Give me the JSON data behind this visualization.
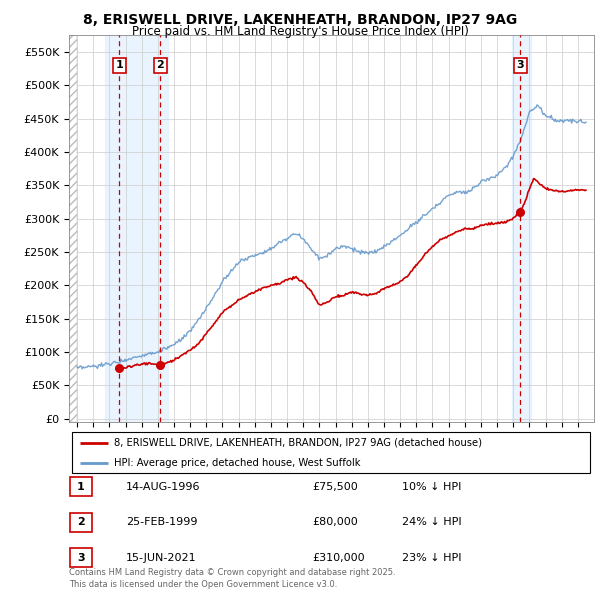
{
  "title_line1": "8, ERISWELL DRIVE, LAKENHEATH, BRANDON, IP27 9AG",
  "title_line2": "Price paid vs. HM Land Registry's House Price Index (HPI)",
  "legend_label_red": "8, ERISWELL DRIVE, LAKENHEATH, BRANDON, IP27 9AG (detached house)",
  "legend_label_blue": "HPI: Average price, detached house, West Suffolk",
  "transactions": [
    {
      "num": 1,
      "date": "14-AUG-1996",
      "year": 1996.62,
      "price": 75500,
      "pct": "10% ↓ HPI"
    },
    {
      "num": 2,
      "date": "25-FEB-1999",
      "year": 1999.15,
      "price": 80000,
      "pct": "24% ↓ HPI"
    },
    {
      "num": 3,
      "date": "15-JUN-2021",
      "year": 2021.45,
      "price": 310000,
      "pct": "23% ↓ HPI"
    }
  ],
  "footer": "Contains HM Land Registry data © Crown copyright and database right 2025.\nThis data is licensed under the Open Government Licence v3.0.",
  "red_color": "#cc0000",
  "blue_color": "#6699cc",
  "highlight_bg_color": "#ddeeff",
  "grid_color": "#cccccc",
  "ytick_labels": [
    "£0",
    "£50K",
    "£100K",
    "£150K",
    "£200K",
    "£250K",
    "£300K",
    "£350K",
    "£400K",
    "£450K",
    "£500K",
    "£550K"
  ],
  "ytick_values": [
    0,
    50000,
    100000,
    150000,
    200000,
    250000,
    300000,
    350000,
    400000,
    450000,
    500000,
    550000
  ],
  "ylim": [
    -5000,
    575000
  ],
  "xlim_start": 1993.5,
  "xlim_end": 2026.0,
  "xtick_years": [
    1994,
    1995,
    1996,
    1997,
    1998,
    1999,
    2000,
    2001,
    2002,
    2003,
    2004,
    2005,
    2006,
    2007,
    2008,
    2009,
    2010,
    2011,
    2012,
    2013,
    2014,
    2015,
    2016,
    2017,
    2018,
    2019,
    2020,
    2021,
    2022,
    2023,
    2024,
    2025
  ],
  "hpi_knots": [
    [
      1994.0,
      75000
    ],
    [
      1995.0,
      78000
    ],
    [
      1996.0,
      82000
    ],
    [
      1997.0,
      88000
    ],
    [
      1998.0,
      95000
    ],
    [
      1999.0,
      100000
    ],
    [
      2000.0,
      110000
    ],
    [
      2001.0,
      130000
    ],
    [
      2002.0,
      165000
    ],
    [
      2003.0,
      205000
    ],
    [
      2004.0,
      235000
    ],
    [
      2005.0,
      245000
    ],
    [
      2006.0,
      255000
    ],
    [
      2007.0,
      270000
    ],
    [
      2007.5,
      278000
    ],
    [
      2008.0,
      270000
    ],
    [
      2008.5,
      255000
    ],
    [
      2009.0,
      240000
    ],
    [
      2009.5,
      245000
    ],
    [
      2010.0,
      255000
    ],
    [
      2010.5,
      260000
    ],
    [
      2011.0,
      255000
    ],
    [
      2011.5,
      250000
    ],
    [
      2012.0,
      248000
    ],
    [
      2012.5,
      250000
    ],
    [
      2013.0,
      258000
    ],
    [
      2014.0,
      275000
    ],
    [
      2015.0,
      295000
    ],
    [
      2016.0,
      315000
    ],
    [
      2017.0,
      335000
    ],
    [
      2017.5,
      340000
    ],
    [
      2018.0,
      340000
    ],
    [
      2018.5,
      345000
    ],
    [
      2019.0,
      355000
    ],
    [
      2019.5,
      360000
    ],
    [
      2020.0,
      365000
    ],
    [
      2020.5,
      375000
    ],
    [
      2021.0,
      395000
    ],
    [
      2021.5,
      420000
    ],
    [
      2022.0,
      460000
    ],
    [
      2022.5,
      470000
    ],
    [
      2023.0,
      455000
    ],
    [
      2023.5,
      450000
    ],
    [
      2024.0,
      445000
    ],
    [
      2024.5,
      448000
    ],
    [
      2025.0,
      445000
    ]
  ],
  "red_knots": [
    [
      1996.62,
      75500
    ],
    [
      1997.0,
      77000
    ],
    [
      1997.5,
      79000
    ],
    [
      1998.0,
      82000
    ],
    [
      1998.5,
      83000
    ],
    [
      1999.15,
      80000
    ],
    [
      1999.5,
      83000
    ],
    [
      2000.0,
      88000
    ],
    [
      2000.5,
      95000
    ],
    [
      2001.0,
      103000
    ],
    [
      2001.5,
      112000
    ],
    [
      2002.0,
      128000
    ],
    [
      2002.5,
      143000
    ],
    [
      2003.0,
      160000
    ],
    [
      2003.5,
      168000
    ],
    [
      2004.0,
      178000
    ],
    [
      2004.5,
      184000
    ],
    [
      2005.0,
      190000
    ],
    [
      2005.5,
      196000
    ],
    [
      2006.0,
      200000
    ],
    [
      2006.5,
      203000
    ],
    [
      2007.0,
      208000
    ],
    [
      2007.5,
      212000
    ],
    [
      2008.0,
      205000
    ],
    [
      2008.5,
      190000
    ],
    [
      2009.0,
      170000
    ],
    [
      2009.5,
      175000
    ],
    [
      2010.0,
      183000
    ],
    [
      2010.5,
      185000
    ],
    [
      2011.0,
      190000
    ],
    [
      2011.5,
      187000
    ],
    [
      2012.0,
      185000
    ],
    [
      2012.5,
      188000
    ],
    [
      2013.0,
      195000
    ],
    [
      2013.5,
      200000
    ],
    [
      2014.0,
      205000
    ],
    [
      2014.5,
      215000
    ],
    [
      2015.0,
      230000
    ],
    [
      2015.5,
      245000
    ],
    [
      2016.0,
      258000
    ],
    [
      2016.5,
      268000
    ],
    [
      2017.0,
      275000
    ],
    [
      2017.5,
      280000
    ],
    [
      2018.0,
      285000
    ],
    [
      2018.5,
      285000
    ],
    [
      2019.0,
      290000
    ],
    [
      2019.5,
      292000
    ],
    [
      2020.0,
      293000
    ],
    [
      2020.5,
      295000
    ],
    [
      2021.0,
      300000
    ],
    [
      2021.45,
      310000
    ],
    [
      2021.8,
      330000
    ],
    [
      2022.0,
      345000
    ],
    [
      2022.3,
      360000
    ],
    [
      2022.5,
      355000
    ],
    [
      2023.0,
      345000
    ],
    [
      2023.5,
      342000
    ],
    [
      2024.0,
      340000
    ],
    [
      2024.5,
      342000
    ],
    [
      2025.0,
      343000
    ]
  ]
}
